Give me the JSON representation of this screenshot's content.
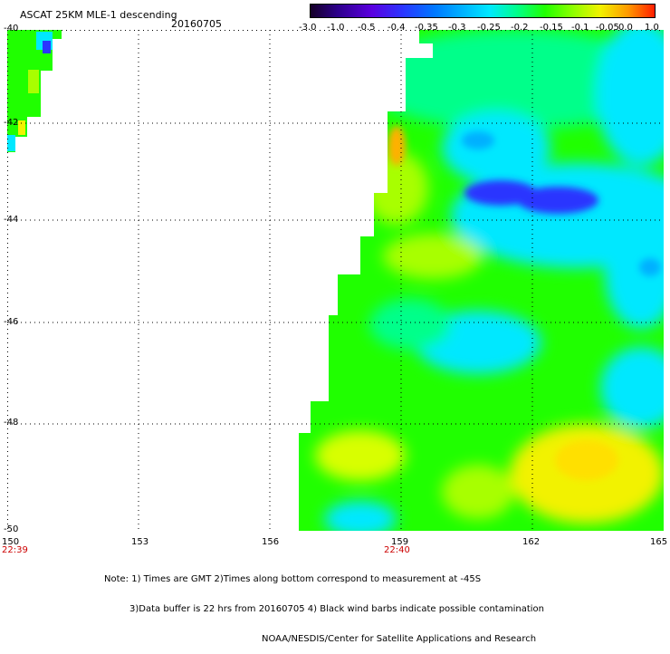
{
  "header": {
    "title": "ASCAT 25KM MLE-1 descending",
    "date": "20160705"
  },
  "colorbar": {
    "ticks": [
      "-3.0",
      "-1.0",
      "-0.5",
      "-0.4",
      "-0.35",
      "-0.3",
      "-0.25",
      "-0.2",
      "-0.15",
      "-0.1",
      "-0.05",
      "0.0",
      "1.0"
    ],
    "colors": [
      "#140024",
      "#2c008a",
      "#5a00e0",
      "#2a35ff",
      "#0077ff",
      "#00b0ff",
      "#00e8ff",
      "#00ff8a",
      "#20ff00",
      "#8cff00",
      "#f2f200",
      "#ff9a00",
      "#ff1a00"
    ]
  },
  "axes": {
    "x_ticks": [
      "150",
      "153",
      "156",
      "159",
      "162",
      "165"
    ],
    "y_ticks": [
      "-40",
      "-42",
      "-44",
      "-46",
      "-48",
      "-50"
    ],
    "time_labels": [
      {
        "lon": "150",
        "time": "22:39"
      },
      {
        "lon": "159",
        "time": "22:40"
      }
    ],
    "xlim": [
      150,
      165
    ],
    "ylim": [
      -50,
      -40
    ]
  },
  "notes": {
    "line1": "Note: 1) Times are GMT 2)Times along bottom correspond to measurement at -45S",
    "line2": "3)Data buffer is 22 hrs from 20160705 4) Black wind barbs indicate possible contamination",
    "line3": "NOAA/NESDIS/Center for Satellite Applications and Research"
  },
  "map_legend": {
    "blue": "#2a35ff",
    "cyan": "#00e8ff",
    "green": "#20ff00",
    "yellow": "#f2f200",
    "orange": "#ff9a00"
  }
}
